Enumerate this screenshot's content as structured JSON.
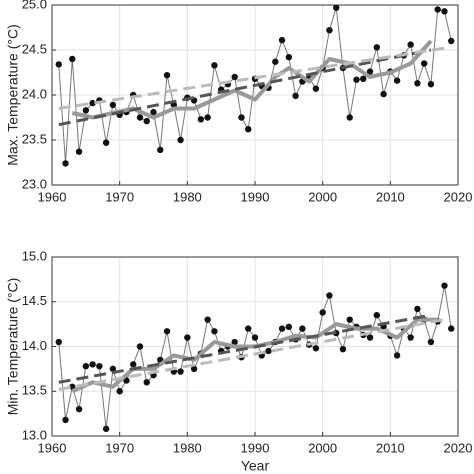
{
  "chart_data": [
    {
      "type": "line",
      "ylabel": "Max. Temperature (°C)",
      "xlim": [
        1960,
        2020
      ],
      "xticks": [
        1960,
        1970,
        1980,
        1990,
        2000,
        2010,
        2020
      ],
      "ylim": [
        23,
        25
      ],
      "yticks": [
        {
          "value": 23,
          "label": "23.0"
        },
        23.5,
        {
          "value": 24,
          "label": "24.0"
        },
        24.5,
        {
          "value": 25,
          "label": "25.0"
        }
      ],
      "grid": true,
      "series": [
        {
          "color": "#777777",
          "line_width": 1,
          "markers": "#111111",
          "x": [
            1961,
            1962,
            1963,
            1964,
            1965,
            1966,
            1967,
            1968,
            1969,
            1970,
            1971,
            1972,
            1973,
            1974,
            1975,
            1976,
            1977,
            1978,
            1979,
            1980,
            1981,
            1982,
            1983,
            1984,
            1985,
            1986,
            1987,
            1988,
            1989,
            1990,
            1991,
            1992,
            1993,
            1994,
            1995,
            1996,
            1997,
            1998,
            1999,
            2000,
            2001,
            2002,
            2003,
            2004,
            2005,
            2006,
            2007,
            2008,
            2009,
            2010,
            2011,
            2012,
            2013,
            2014,
            2015,
            2016,
            2017,
            2018,
            2019
          ],
          "values": [
            24.34,
            23.24,
            24.4,
            23.37,
            23.83,
            23.91,
            23.94,
            23.47,
            23.89,
            23.78,
            23.81,
            24.0,
            23.75,
            23.71,
            23.81,
            23.39,
            24.22,
            23.89,
            23.5,
            23.97,
            23.94,
            23.73,
            23.75,
            24.33,
            24.06,
            24.12,
            24.2,
            23.75,
            23.62,
            24.18,
            24.1,
            24.08,
            24.37,
            24.61,
            24.42,
            23.99,
            24.15,
            24.19,
            24.07,
            24.3,
            24.72,
            24.97,
            24.3,
            23.75,
            24.17,
            24.18,
            24.26,
            24.53,
            24.01,
            24.26,
            24.16,
            24.44,
            24.56,
            24.13,
            24.35,
            24.12,
            24.95,
            24.93,
            24.6
          ]
        },
        {
          "color": "#999999",
          "line_width": 4,
          "x": [
            1963,
            1966,
            1969,
            1972,
            1975,
            1978,
            1981,
            1984,
            1987,
            1990,
            1993,
            1995,
            1998,
            2001,
            2004,
            2007,
            2010,
            2013,
            2016
          ],
          "values": [
            23.8,
            23.75,
            23.8,
            23.85,
            23.75,
            23.85,
            23.85,
            23.95,
            24.05,
            23.95,
            24.2,
            24.3,
            24.15,
            24.4,
            24.35,
            24.2,
            24.25,
            24.35,
            24.6
          ]
        },
        {
          "color": "#555555",
          "line_width": 3,
          "dash": true,
          "x": [
            1961,
            2016
          ],
          "values": [
            23.67,
            24.5
          ]
        },
        {
          "color": "#bbbbbb",
          "line_width": 3,
          "dash": true,
          "x": [
            1961,
            2018
          ],
          "values": [
            23.85,
            24.52
          ]
        }
      ]
    },
    {
      "type": "line",
      "ylabel": "Min. Temperature (°C)",
      "xlabel": "Year",
      "xlim": [
        1960,
        2020
      ],
      "xticks": [
        1960,
        1970,
        1980,
        1990,
        2000,
        2010,
        2020
      ],
      "ylim": [
        13,
        15
      ],
      "yticks": [
        {
          "value": 13,
          "label": "13.0"
        },
        13.5,
        {
          "value": 14,
          "label": "14.0"
        },
        14.5,
        {
          "value": 15,
          "label": "15.0"
        }
      ],
      "grid": true,
      "series": [
        {
          "color": "#777777",
          "line_width": 1,
          "markers": "#111111",
          "x": [
            1961,
            1962,
            1963,
            1964,
            1965,
            1966,
            1967,
            1968,
            1969,
            1970,
            1971,
            1972,
            1973,
            1974,
            1975,
            1976,
            1977,
            1978,
            1979,
            1980,
            1981,
            1982,
            1983,
            1984,
            1985,
            1986,
            1987,
            1988,
            1989,
            1990,
            1991,
            1992,
            1993,
            1994,
            1995,
            1996,
            1997,
            1998,
            1999,
            2000,
            2001,
            2002,
            2003,
            2004,
            2005,
            2006,
            2007,
            2008,
            2009,
            2010,
            2011,
            2012,
            2013,
            2014,
            2015,
            2016,
            2017,
            2018,
            2019
          ],
          "values": [
            14.05,
            13.18,
            13.55,
            13.3,
            13.78,
            13.8,
            13.78,
            13.08,
            13.75,
            13.5,
            13.62,
            13.8,
            14.0,
            13.6,
            13.68,
            13.85,
            14.17,
            13.72,
            13.72,
            14.1,
            13.75,
            13.92,
            14.3,
            14.17,
            13.95,
            14.0,
            14.05,
            13.88,
            14.2,
            14.1,
            13.9,
            13.95,
            14.05,
            14.2,
            14.22,
            14.08,
            14.2,
            14.02,
            13.98,
            14.38,
            14.57,
            14.15,
            13.97,
            14.3,
            14.22,
            14.13,
            14.1,
            14.35,
            14.22,
            14.12,
            13.9,
            14.2,
            14.1,
            14.42,
            14.3,
            14.05,
            14.28,
            14.68,
            14.2
          ]
        },
        {
          "color": "#999999",
          "line_width": 4,
          "x": [
            1963,
            1966,
            1969,
            1972,
            1975,
            1978,
            1981,
            1984,
            1987,
            1990,
            1993,
            1996,
            1999,
            2002,
            2005,
            2008,
            2011,
            2014,
            2017
          ],
          "values": [
            13.5,
            13.6,
            13.55,
            13.75,
            13.75,
            13.9,
            13.85,
            14.05,
            14.0,
            14.0,
            14.05,
            14.12,
            14.1,
            14.25,
            14.2,
            14.2,
            14.1,
            14.3,
            14.3
          ]
        },
        {
          "color": "#555555",
          "line_width": 3,
          "dash": true,
          "x": [
            1961,
            2016
          ],
          "values": [
            13.6,
            14.35
          ]
        },
        {
          "color": "#bbbbbb",
          "line_width": 3,
          "dash": true,
          "x": [
            1961,
            2018
          ],
          "values": [
            13.52,
            14.3
          ]
        }
      ]
    }
  ]
}
